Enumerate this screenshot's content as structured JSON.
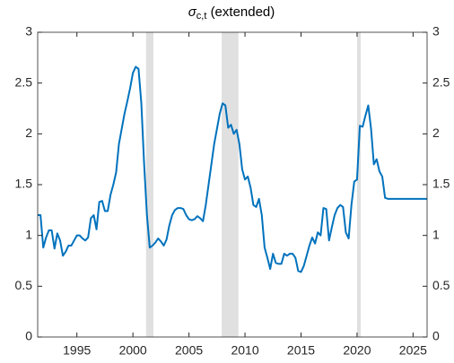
{
  "chart_data": {
    "type": "line",
    "title": {
      "symbol": "σ",
      "subscript": "c,t",
      "text": "(extended)"
    },
    "x": [
      1991.5,
      1991.75,
      1992,
      1992.25,
      1992.5,
      1992.75,
      1993,
      1993.25,
      1993.5,
      1993.75,
      1994,
      1994.25,
      1994.5,
      1994.75,
      1995,
      1995.25,
      1995.5,
      1995.75,
      1996,
      1996.25,
      1996.5,
      1996.75,
      1997,
      1997.25,
      1997.5,
      1997.75,
      1998,
      1998.25,
      1998.5,
      1998.75,
      1999,
      1999.25,
      1999.5,
      1999.75,
      2000,
      2000.25,
      2000.5,
      2000.75,
      2001,
      2001.25,
      2001.5,
      2001.75,
      2002,
      2002.25,
      2002.5,
      2002.75,
      2003,
      2003.25,
      2003.5,
      2003.75,
      2004,
      2004.25,
      2004.5,
      2004.75,
      2005,
      2005.25,
      2005.5,
      2005.75,
      2006,
      2006.25,
      2006.5,
      2006.75,
      2007,
      2007.25,
      2007.5,
      2007.75,
      2008,
      2008.25,
      2008.5,
      2008.75,
      2009,
      2009.25,
      2009.5,
      2009.75,
      2010,
      2010.25,
      2010.5,
      2010.75,
      2011,
      2011.25,
      2011.5,
      2011.75,
      2012,
      2012.25,
      2012.5,
      2012.75,
      2013,
      2013.25,
      2013.5,
      2013.75,
      2014,
      2014.25,
      2014.5,
      2014.75,
      2015,
      2015.25,
      2015.5,
      2015.75,
      2016,
      2016.25,
      2016.5,
      2016.75,
      2017,
      2017.25,
      2017.5,
      2017.75,
      2018,
      2018.25,
      2018.5,
      2018.75,
      2019,
      2019.25,
      2019.5,
      2019.75,
      2020,
      2020.25,
      2020.5,
      2020.75,
      2021,
      2021.25,
      2021.5,
      2021.75,
      2022,
      2022.25,
      2022.5,
      2022.75,
      2026.25
    ],
    "values": [
      1.2,
      1.2,
      0.88,
      0.98,
      1.05,
      1.05,
      0.87,
      1.02,
      0.95,
      0.8,
      0.84,
      0.9,
      0.9,
      0.95,
      1.0,
      1.0,
      0.97,
      0.95,
      0.98,
      1.17,
      1.2,
      1.06,
      1.33,
      1.34,
      1.24,
      1.24,
      1.4,
      1.5,
      1.62,
      1.9,
      2.05,
      2.2,
      2.32,
      2.45,
      2.6,
      2.66,
      2.64,
      2.3,
      1.7,
      1.2,
      0.88,
      0.9,
      0.93,
      0.97,
      0.94,
      0.9,
      0.96,
      1.1,
      1.2,
      1.25,
      1.27,
      1.27,
      1.26,
      1.2,
      1.16,
      1.15,
      1.16,
      1.19,
      1.17,
      1.14,
      1.3,
      1.5,
      1.7,
      1.9,
      2.05,
      2.2,
      2.3,
      2.28,
      2.06,
      2.09,
      2.0,
      2.04,
      1.9,
      1.65,
      1.55,
      1.58,
      1.47,
      1.3,
      1.28,
      1.36,
      1.2,
      0.88,
      0.78,
      0.67,
      0.82,
      0.73,
      0.72,
      0.72,
      0.82,
      0.8,
      0.82,
      0.82,
      0.78,
      0.65,
      0.64,
      0.7,
      0.8,
      0.9,
      0.98,
      0.92,
      1.03,
      1.0,
      1.27,
      1.26,
      0.95,
      1.08,
      1.2,
      1.27,
      1.3,
      1.28,
      1.03,
      0.97,
      1.3,
      1.53,
      1.55,
      2.08,
      2.07,
      2.18,
      2.28,
      2.05,
      1.7,
      1.75,
      1.63,
      1.58,
      1.37,
      1.36,
      1.36
    ],
    "color": "#0072bd",
    "recessions": [
      [
        2001.17,
        2001.83
      ],
      [
        2007.92,
        2009.42
      ],
      [
        2020.0,
        2020.33
      ]
    ],
    "recession_color": "#e0e0e0",
    "xlim": [
      1991.5,
      2026.25
    ],
    "xticks": [
      1995,
      2000,
      2005,
      2010,
      2015,
      2020,
      2025
    ],
    "ylim": [
      0,
      3
    ],
    "yticks": [
      0,
      0.5,
      1,
      1.5,
      2,
      2.5,
      3
    ]
  }
}
